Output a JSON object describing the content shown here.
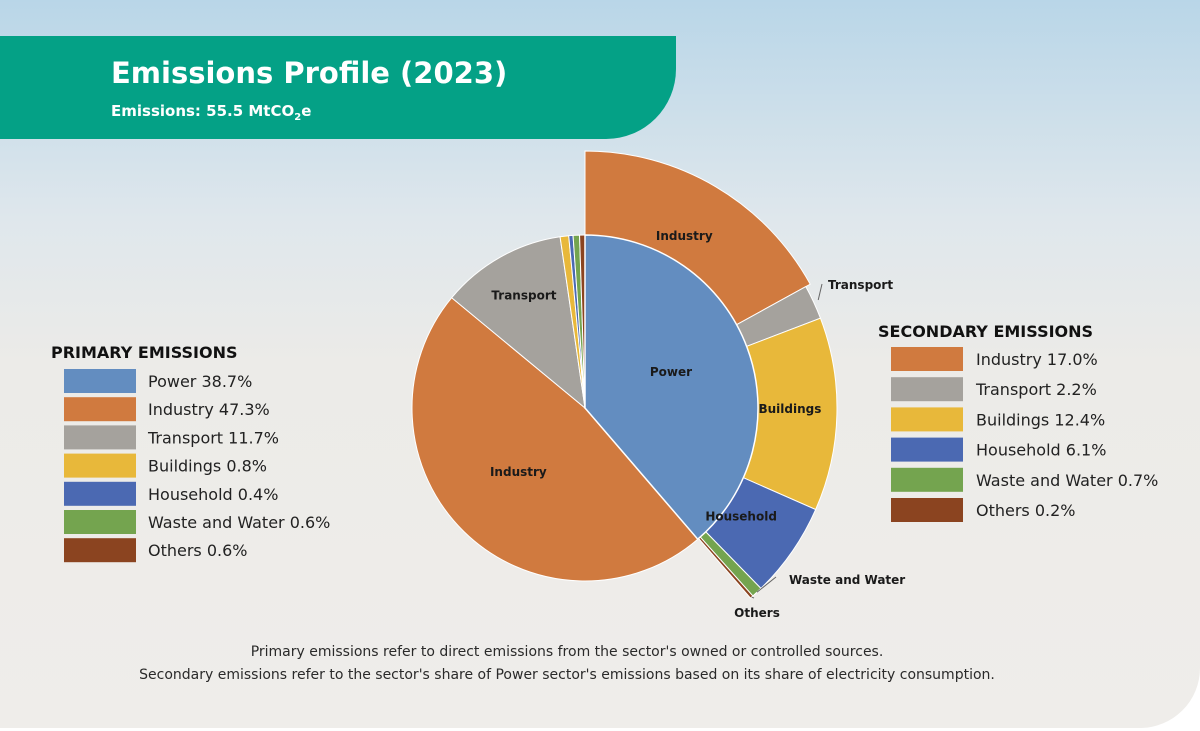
{
  "header": {
    "title": "Emissions Profile (2023)",
    "subtitle_prefix": "Emissions: 55.5 MtCO",
    "subtitle_sub": "2",
    "subtitle_suffix": "e"
  },
  "chart_data": {
    "type": "pie",
    "primary": {
      "legend_title": "PRIMARY EMISSIONS",
      "slices": [
        {
          "name": "Power",
          "value": 38.7,
          "legend": "Power 38.7%",
          "color": "#638dc0",
          "label": "Power"
        },
        {
          "name": "Industry",
          "value": 47.3,
          "legend": "Industry 47.3%",
          "color": "#d07a3f",
          "label": "Industry"
        },
        {
          "name": "Transport",
          "value": 11.7,
          "legend": "Transport 11.7%",
          "color": "#a5a29d",
          "label": "Transport"
        },
        {
          "name": "Buildings",
          "value": 0.8,
          "legend": "Buildings 0.8%",
          "color": "#e8b83a",
          "label": ""
        },
        {
          "name": "Household",
          "value": 0.4,
          "legend": "Household 0.4%",
          "color": "#4b69b2",
          "label": ""
        },
        {
          "name": "Waste and Water",
          "value": 0.6,
          "legend": "Waste and Water 0.6%",
          "color": "#74a44f",
          "label": ""
        },
        {
          "name": "Others",
          "value": 0.6,
          "legend": "Others 0.6%",
          "color": "#8b4420",
          "label": ""
        }
      ]
    },
    "secondary": {
      "legend_title": "SECONDARY EMISSIONS",
      "slices": [
        {
          "name": "Industry",
          "value": 17.0,
          "legend": "Industry 17.0%",
          "color": "#d07a3f",
          "label": "Industry"
        },
        {
          "name": "Transport",
          "value": 2.2,
          "legend": "Transport 2.2%",
          "color": "#a5a29d",
          "label": "Transport"
        },
        {
          "name": "Buildings",
          "value": 12.4,
          "legend": "Buildings 12.4%",
          "color": "#e8b83a",
          "label": "Buildings"
        },
        {
          "name": "Household",
          "value": 6.1,
          "legend": "Household 6.1%",
          "color": "#4b69b2",
          "label": "Household"
        },
        {
          "name": "Waste and Water",
          "value": 0.7,
          "legend": "Waste and Water 0.7%",
          "color": "#74a44f",
          "label": "Waste and Water"
        },
        {
          "name": "Others",
          "value": 0.2,
          "legend": "Others 0.2%",
          "color": "#8b4420",
          "label": "Others"
        }
      ]
    }
  },
  "notes": {
    "primary_note": "Primary emissions refer to direct emissions from the sector's owned or controlled sources.",
    "secondary_note": "Secondary emissions refer to the sector's share of Power sector's emissions based on its share of electricity consumption."
  }
}
